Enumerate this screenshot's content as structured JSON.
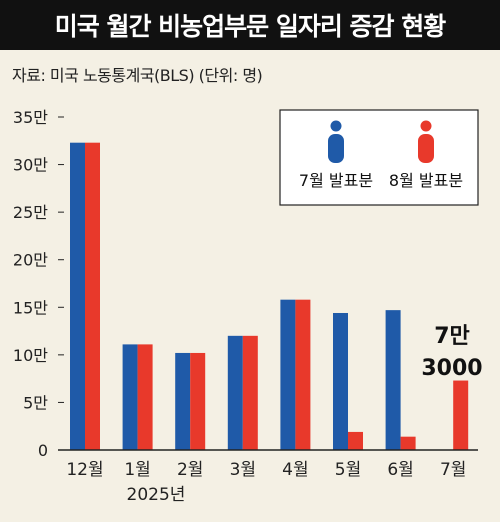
{
  "header": {
    "title": "미국 월간 비농업부문 일자리 증감 현황",
    "source": "자료: 미국 노동통계국(BLS) (단위: 명)"
  },
  "colors": {
    "july": "#1f5aa8",
    "august": "#e8392b",
    "background": "#f4f0e4"
  },
  "chart_data": {
    "type": "bar",
    "categories": [
      "12월",
      "1월",
      "2월",
      "3월",
      "4월",
      "5월",
      "6월",
      "7월"
    ],
    "x_sublabel": "2025년",
    "y_ticks": [
      "0",
      "5만",
      "10만",
      "15만",
      "20만",
      "25만",
      "30만",
      "35만"
    ],
    "ylim": [
      0,
      350000
    ],
    "series": [
      {
        "name": "7월 발표분",
        "values": [
          323000,
          111000,
          102000,
          120000,
          158000,
          144000,
          147000,
          null
        ]
      },
      {
        "name": "8월 발표분",
        "values": [
          323000,
          111000,
          102000,
          120000,
          158000,
          19000,
          14000,
          73000
        ]
      }
    ],
    "annotation": {
      "line1": "7만",
      "line2": "3000"
    },
    "legend_position": "top-right",
    "grid": false
  }
}
